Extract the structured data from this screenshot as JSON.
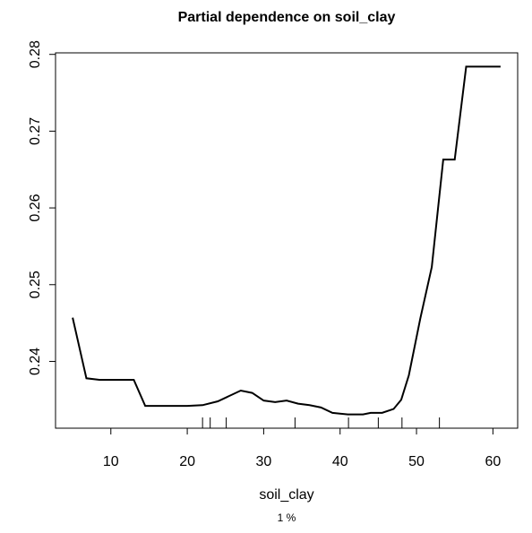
{
  "chart_data": {
    "type": "line",
    "title": "Partial dependence on soil_clay",
    "x_label": "soil_clay",
    "subtitle": "1 %",
    "x": [
      5,
      6.8,
      8.5,
      10,
      13,
      14.5,
      17,
      20,
      22,
      24,
      27,
      28.5,
      30,
      31.5,
      33,
      34.5,
      36,
      37.5,
      39,
      41,
      43,
      44,
      45.5,
      47,
      48,
      49,
      50.5,
      52,
      53.5,
      55,
      56.5,
      61
    ],
    "series": [
      {
        "color": "#000000",
        "values": [
          0.2457,
          0.2378,
          0.2376,
          0.2376,
          0.2376,
          0.2342,
          0.2342,
          0.2342,
          0.2343,
          0.2348,
          0.2362,
          0.2359,
          0.2349,
          0.2347,
          0.2349,
          0.2345,
          0.2343,
          0.234,
          0.2333,
          0.2331,
          0.2331,
          0.2333,
          0.2333,
          0.2338,
          0.235,
          0.2382,
          0.2456,
          0.2523,
          0.2663,
          0.2663,
          0.2784,
          0.2784
        ]
      }
    ],
    "rug": [
      22,
      23,
      25.1,
      34.1,
      41.1,
      45,
      48.1,
      53
    ],
    "xlim": [
      2.76,
      63.24
    ],
    "ylim": [
      0.2313,
      0.2802
    ],
    "xticks": [
      10,
      20,
      30,
      40,
      50,
      60
    ],
    "yticks": [
      0.24,
      0.25,
      0.26,
      0.27,
      0.28
    ]
  }
}
